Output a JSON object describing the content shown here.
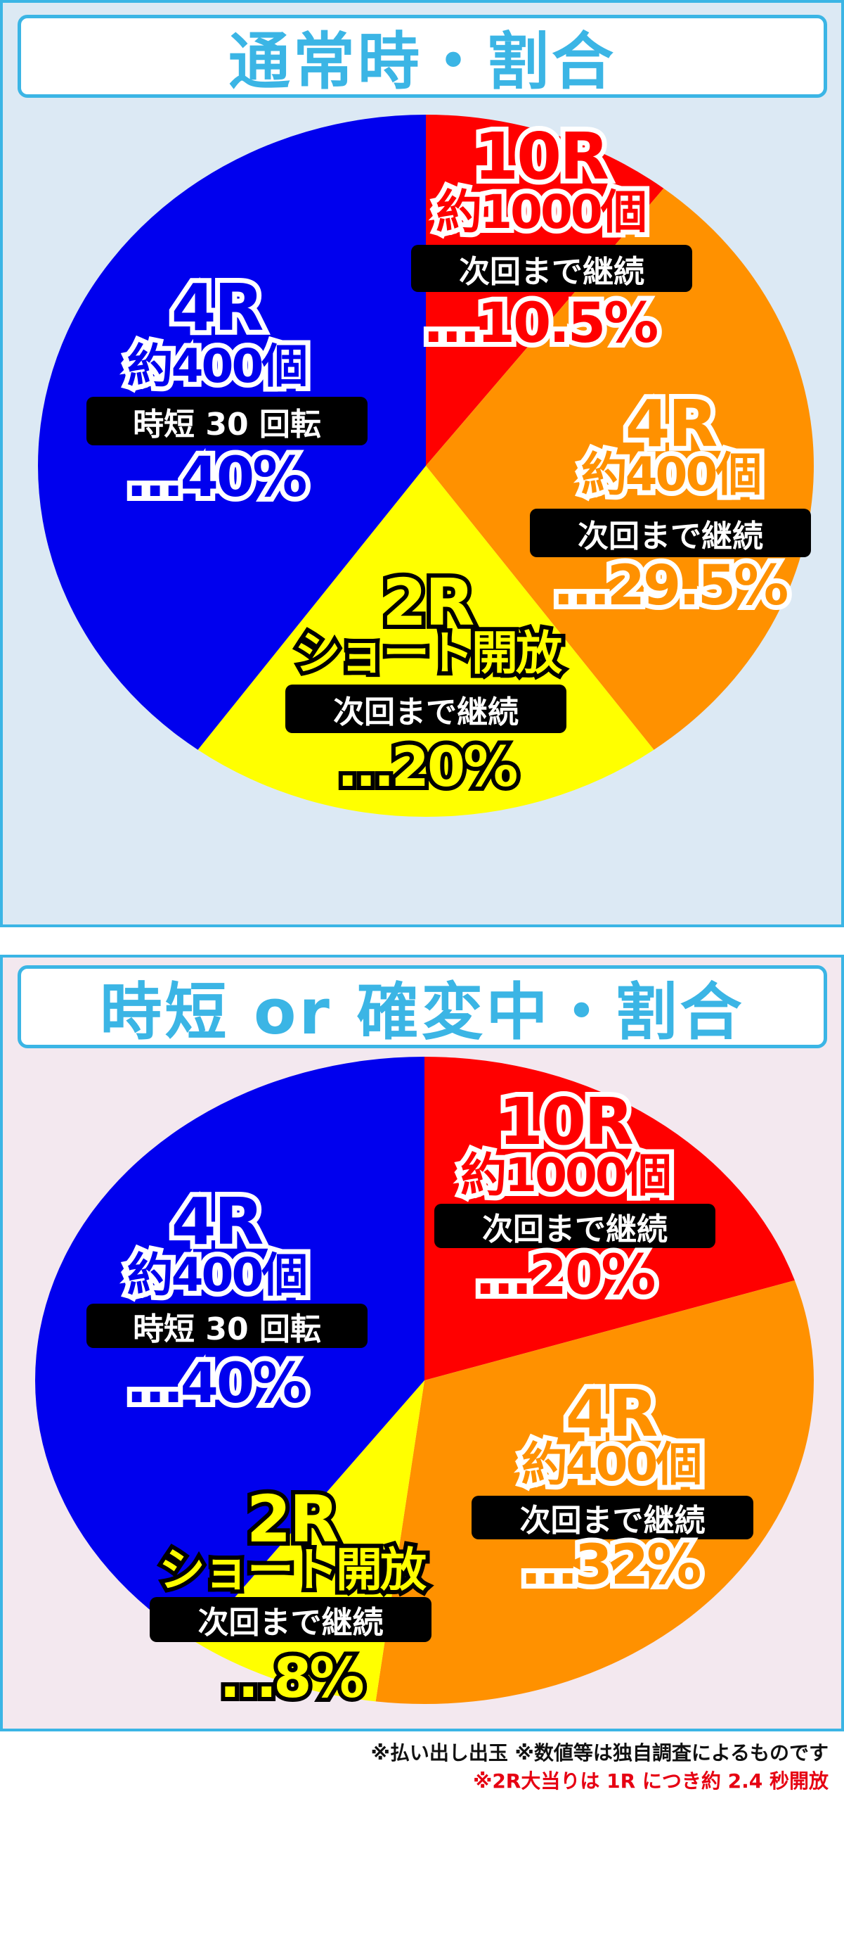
{
  "colors": {
    "red": "#ff0000",
    "orange": "#ff9100",
    "yellow": "#ffff00",
    "blue": "#0000ee",
    "accent": "#3bb5e5"
  },
  "chart_data": [
    {
      "type": "pie",
      "title": "通常時・割合",
      "start": "top",
      "direction": "clockwise",
      "slices": [
        {
          "round": "10R",
          "payout": "約1000個",
          "condition": "次回まで継続",
          "percent_label": "…10.5%",
          "value": 10.5,
          "color": "#ff0000"
        },
        {
          "round": "4R",
          "payout": "約400個",
          "condition": "次回まで継続",
          "percent_label": "…29.5%",
          "value": 29.5,
          "color": "#ff9100"
        },
        {
          "round": "2R",
          "payout": "ショート開放",
          "condition": "次回まで継続",
          "percent_label": "…20%",
          "value": 20,
          "color": "#ffff00"
        },
        {
          "round": "4R",
          "payout": "約400個",
          "condition": "時短 30 回転",
          "percent_label": "…40%",
          "value": 40,
          "color": "#0000ee"
        }
      ]
    },
    {
      "type": "pie",
      "title": "時短 or 確変中・割合",
      "start": "top",
      "direction": "clockwise",
      "slices": [
        {
          "round": "10R",
          "payout": "約1000個",
          "condition": "次回まで継続",
          "percent_label": "…20%",
          "value": 20,
          "color": "#ff0000"
        },
        {
          "round": "4R",
          "payout": "約400個",
          "condition": "次回まで継続",
          "percent_label": "…32%",
          "value": 32,
          "color": "#ff9100"
        },
        {
          "round": "2R",
          "payout": "ショート開放",
          "condition": "次回まで継続",
          "percent_label": "…8%",
          "value": 8,
          "color": "#ffff00"
        },
        {
          "round": "4R",
          "payout": "約400個",
          "condition": "時短 30 回転",
          "percent_label": "…40%",
          "value": 40,
          "color": "#0000ee"
        }
      ]
    }
  ],
  "footnotes": {
    "line1": "※払い出し出玉 ※数値等は独自調査によるものです",
    "line2": "※2R大当りは 1R につき約 2.4 秒開放"
  }
}
